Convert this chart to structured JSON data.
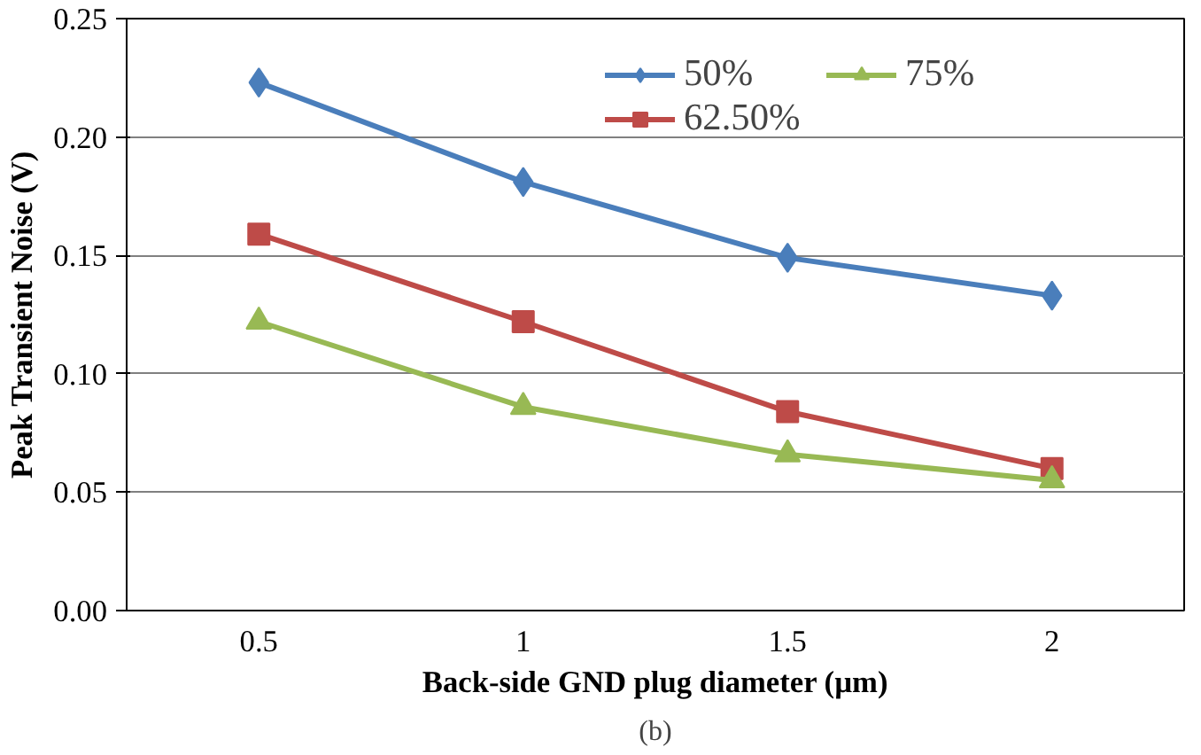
{
  "chart_data": {
    "type": "line",
    "xlabel": "Back-side GND plug diameter (µm)",
    "ylabel": "Peak Transient Noise (V)",
    "categories": [
      "0.5",
      "1",
      "1.5",
      "2"
    ],
    "series": [
      {
        "name": "50%",
        "color": "#4a7ebb",
        "marker": "diamond",
        "values": [
          0.223,
          0.181,
          0.149,
          0.133
        ]
      },
      {
        "name": "62.50%",
        "color": "#be4b48",
        "marker": "square",
        "values": [
          0.159,
          0.122,
          0.084,
          0.06
        ]
      },
      {
        "name": "75%",
        "color": "#98b954",
        "marker": "triangle",
        "values": [
          0.122,
          0.086,
          0.066,
          0.055
        ]
      }
    ],
    "ylim": [
      0,
      0.25
    ],
    "yticks": [
      {
        "value": 0,
        "label": "0.00"
      },
      {
        "value": 0.05,
        "label": "0.05"
      },
      {
        "value": 0.1,
        "label": "0.10"
      },
      {
        "value": 0.15,
        "label": "0.15"
      },
      {
        "value": 0.2,
        "label": "0.20"
      },
      {
        "value": 0.25,
        "label": "0.25"
      }
    ],
    "grid": "y",
    "legend": "top right",
    "annotations": [
      "(b)"
    ]
  }
}
